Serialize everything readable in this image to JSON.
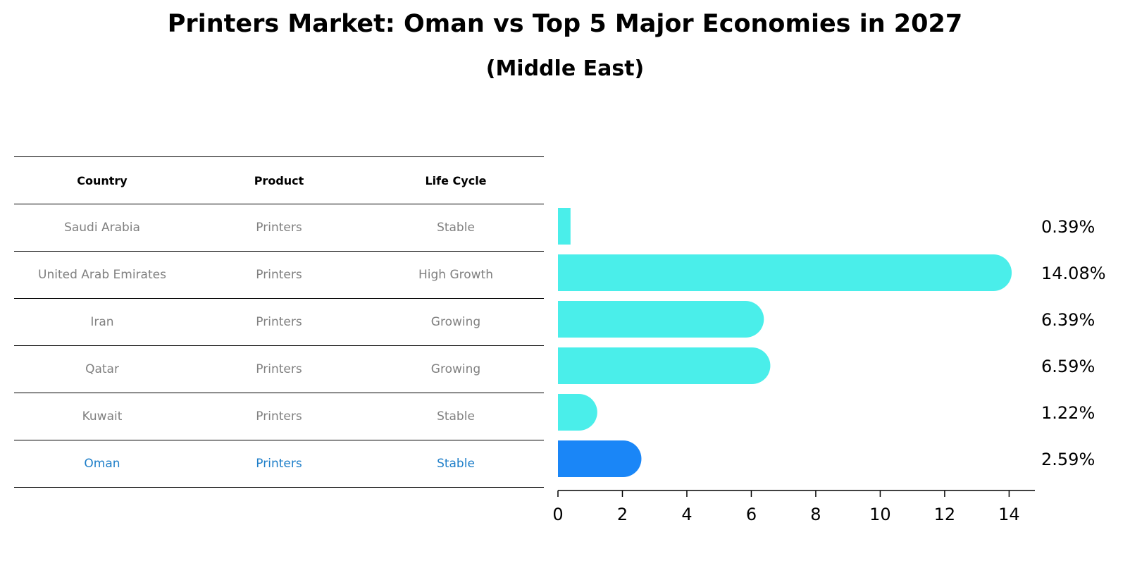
{
  "header": {
    "title": "Printers Market: Oman vs Top 5 Major Economies in 2027",
    "subtitle": "(Middle East)"
  },
  "table": {
    "columns": [
      "Country",
      "Product",
      "Life Cycle"
    ],
    "rows": [
      {
        "country": "Saudi Arabia",
        "product": "Printers",
        "life_cycle": "Stable"
      },
      {
        "country": "United Arab Emirates",
        "product": "Printers",
        "life_cycle": "High Growth"
      },
      {
        "country": "Iran",
        "product": "Printers",
        "life_cycle": "Growing"
      },
      {
        "country": "Qatar",
        "product": "Printers",
        "life_cycle": "Growing"
      },
      {
        "country": "Kuwait",
        "product": "Printers",
        "life_cycle": "Stable"
      },
      {
        "country": "Oman",
        "product": "Printers",
        "life_cycle": "Stable"
      }
    ],
    "highlight_color": "#1f7fc9",
    "text_color": "#808080"
  },
  "chart_data": {
    "type": "bar",
    "orientation": "horizontal",
    "categories": [
      "Saudi Arabia",
      "United Arab Emirates",
      "Iran",
      "Qatar",
      "Kuwait",
      "Oman"
    ],
    "values": [
      0.39,
      14.08,
      6.39,
      6.59,
      1.22,
      2.59
    ],
    "value_labels": [
      "0.39%",
      "14.08%",
      "6.39%",
      "6.59%",
      "1.22%",
      "2.59%"
    ],
    "xlim": [
      0,
      14.8
    ],
    "xticks": [
      0,
      2,
      4,
      6,
      8,
      10,
      12,
      14
    ],
    "bar_color": "#4aeeea",
    "highlight_color": "#1a86f7",
    "highlight_category": "Oman",
    "grid": false
  }
}
